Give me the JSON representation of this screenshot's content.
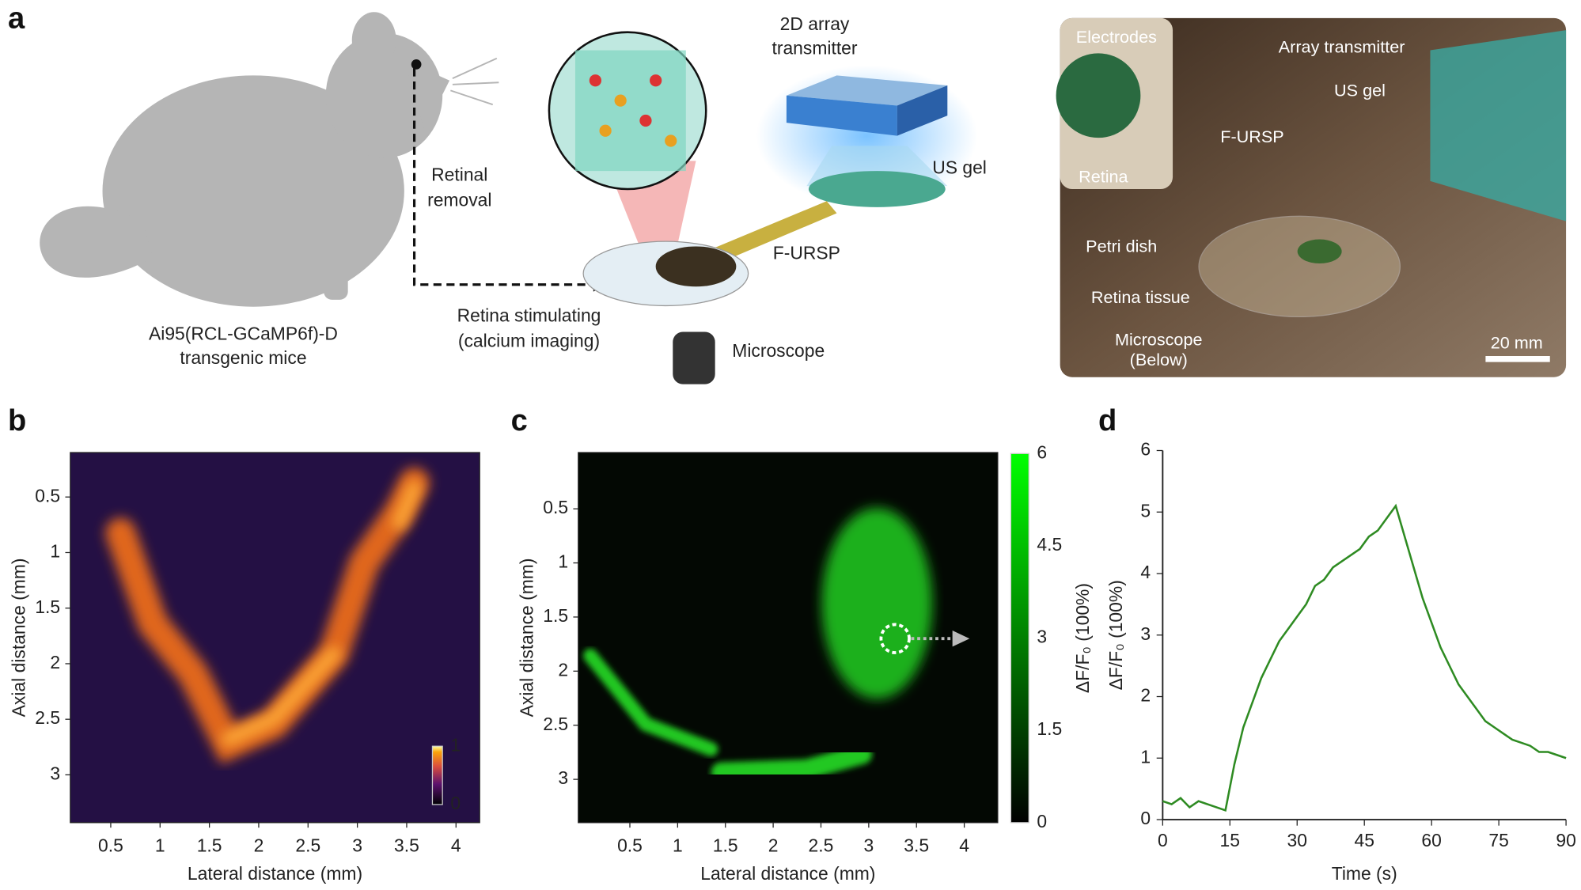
{
  "panel_labels": [
    "a",
    "b",
    "c",
    "d"
  ],
  "panel_a": {
    "mouse_label": [
      "Ai95(RCL-GCaMP6f)-D",
      "transgenic mice"
    ],
    "retinal_removal": [
      "Retinal",
      "removal"
    ],
    "array_transmitter": [
      "2D array",
      "transmitter"
    ],
    "us_gel": "US gel",
    "f_ursp": "F-URSP",
    "stimulating": [
      "Retina stimulating",
      "(calcium imaging)"
    ],
    "microscope": "Microscope",
    "photo": {
      "electrodes": "Electrodes",
      "retina": "Retina",
      "array_transmitter": "Array transmitter",
      "us_gel": "US gel",
      "f_ursp": "F-URSP",
      "petri_dish": "Petri dish",
      "retina_tissue": "Retina tissue",
      "microscope": [
        "Microscope",
        "(Below)"
      ],
      "scale": "20 mm"
    }
  },
  "chart_data": [
    {
      "type": "heatmap",
      "xlabel": "Lateral distance (mm)",
      "ylabel": "Axial distance (mm)",
      "xlim": [
        0.09,
        4.24
      ],
      "ylim": [
        0.1,
        3.43
      ],
      "xticks": [
        0.5,
        1,
        1.5,
        2,
        2.5,
        3,
        3.5,
        4
      ],
      "yticks": [
        0.5,
        1,
        1.5,
        2,
        2.5,
        3
      ],
      "colorbar": {
        "lim": [
          0,
          1
        ],
        "ticks": [
          0,
          1
        ]
      }
    },
    {
      "type": "heatmap",
      "xlabel": "Lateral distance (mm)",
      "ylabel": "Axial distance (mm)",
      "xlim": [
        -0.04,
        4.35
      ],
      "ylim": [
        -0.02,
        3.4
      ],
      "xticks": [
        0.5,
        1,
        1.5,
        2,
        2.5,
        3,
        3.5,
        4
      ],
      "yticks": [
        0.5,
        1,
        1.5,
        2,
        2.5,
        3
      ],
      "colorbar": {
        "label": "ΔF/F₀ (100%)",
        "lim": [
          0,
          6
        ],
        "ticks": [
          0,
          1.5,
          3,
          4.5,
          6
        ]
      }
    },
    {
      "type": "line",
      "xlabel": "Time (s)",
      "ylabel": "ΔF/F₀ (100%)",
      "x": [
        0,
        2,
        4,
        6,
        8,
        10,
        12,
        14,
        16,
        18,
        20,
        22,
        24,
        26,
        28,
        30,
        32,
        34,
        36,
        38,
        40,
        42,
        44,
        46,
        48,
        50,
        52,
        54,
        56,
        58,
        60,
        62,
        64,
        66,
        68,
        70,
        72,
        74,
        76,
        78,
        80,
        82,
        84,
        86,
        88,
        90
      ],
      "series": [
        {
          "color": "#2e8b22",
          "values": [
            0.3,
            0.25,
            0.35,
            0.2,
            0.3,
            0.25,
            0.2,
            0.15,
            0.9,
            1.5,
            1.9,
            2.3,
            2.6,
            2.9,
            3.1,
            3.3,
            3.5,
            3.8,
            3.9,
            4.1,
            4.2,
            4.3,
            4.4,
            4.6,
            4.7,
            4.9,
            5.1,
            4.6,
            4.1,
            3.6,
            3.2,
            2.8,
            2.5,
            2.2,
            2.0,
            1.8,
            1.6,
            1.5,
            1.4,
            1.3,
            1.25,
            1.2,
            1.1,
            1.1,
            1.05,
            1.0
          ]
        }
      ],
      "xlim": [
        0,
        90
      ],
      "ylim": [
        0,
        6
      ],
      "xticks": [
        0,
        15,
        30,
        45,
        60,
        75,
        90
      ],
      "yticks": [
        0,
        1,
        2,
        3,
        4,
        5,
        6
      ]
    }
  ]
}
